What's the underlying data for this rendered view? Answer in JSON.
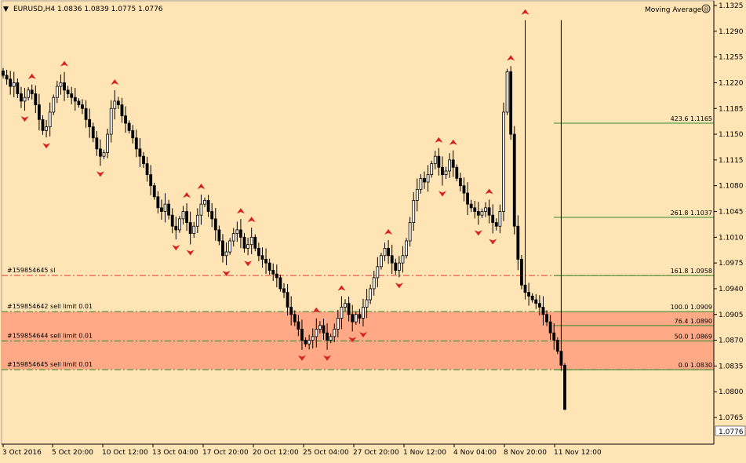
{
  "window": {
    "title": "EURUSD,H4  1.0836 1.0839 1.0775 1.0776"
  },
  "indicator": {
    "label": "Moving Average"
  },
  "price_axis": {
    "labels": [
      "1.1325",
      "1.1290",
      "1.1255",
      "1.1220",
      "1.1185",
      "1.1150",
      "1.1115",
      "1.1080",
      "1.1045",
      "1.1010",
      "1.0975",
      "1.0940",
      "1.0905",
      "1.0870",
      "1.0835",
      "1.0800",
      "1.0765"
    ],
    "current_price": "1.0776"
  },
  "time_axis": {
    "labels": [
      "3 Oct 2016",
      "5 Oct 20:00",
      "10 Oct 12:00",
      "13 Oct 04:00",
      "17 Oct 20:00",
      "20 Oct 12:00",
      "25 Oct 04:00",
      "27 Oct 20:00",
      "1 Nov 12:00",
      "4 Nov 04:00",
      "8 Nov 20:00",
      "11 Nov 12:00"
    ]
  },
  "orders": [
    {
      "label": "#159854645 sl",
      "price": 1.0958,
      "color": "#dc3c3c"
    },
    {
      "label": "#159854642 sell limit 0.01",
      "price": 1.0909,
      "color": "#2e8b2e"
    },
    {
      "label": "#159854644 sell limit 0.01",
      "price": 1.0869,
      "color": "#2e8b2e"
    },
    {
      "label": "#159854645 sell limit 0.01",
      "price": 1.083,
      "color": "#2e8b2e"
    }
  ],
  "fibo_levels": [
    {
      "label": "423.6 1.1165",
      "price": 1.1165
    },
    {
      "label": "261.8 1.1037",
      "price": 1.1037
    },
    {
      "label": "161.8 1.0958",
      "price": 1.0958
    },
    {
      "label": "100.0 1.0909",
      "price": 1.0909
    },
    {
      "label": "76.4 1.0890",
      "price": 1.089
    },
    {
      "label": "50.0 1.0869",
      "price": 1.0869
    },
    {
      "label": "0.0 1.0830",
      "price": 1.083
    }
  ],
  "zone": {
    "price_top": 1.0909,
    "price_bottom": 1.083,
    "color": "#ff9f7f"
  },
  "chart_data": {
    "type": "candlestick",
    "symbol": "EURUSD",
    "timeframe": "H4",
    "ohlc": {
      "open": 1.0836,
      "high": 1.0839,
      "low": 1.0775,
      "close": 1.0776
    },
    "ylim": [
      1.0755,
      1.1325
    ],
    "closes": [
      1.123,
      1.1225,
      1.1215,
      1.122,
      1.1205,
      1.1195,
      1.12,
      1.121,
      1.1205,
      1.119,
      1.117,
      1.1155,
      1.116,
      1.118,
      1.12,
      1.1215,
      1.122,
      1.121,
      1.1205,
      1.12,
      1.1195,
      1.119,
      1.1185,
      1.117,
      1.116,
      1.1145,
      1.113,
      1.112,
      1.1125,
      1.115,
      1.1185,
      1.1195,
      1.119,
      1.1175,
      1.1165,
      1.1155,
      1.1145,
      1.113,
      1.112,
      1.111,
      1.1095,
      1.108,
      1.1065,
      1.105,
      1.1045,
      1.1055,
      1.104,
      1.1025,
      1.102,
      1.1035,
      1.1045,
      1.103,
      1.1015,
      1.1025,
      1.104,
      1.1055,
      1.106,
      1.1045,
      1.1035,
      1.102,
      1.1005,
      1.0985,
      1.099,
      1.1005,
      1.1015,
      1.102,
      1.101,
      1.0995,
      1.1,
      1.101,
      1.0995,
      1.0985,
      1.098,
      1.0975,
      1.0965,
      1.096,
      1.0955,
      1.094,
      1.0935,
      1.0915,
      1.0905,
      1.0895,
      1.0885,
      1.087,
      1.0865,
      1.087,
      1.0875,
      1.0885,
      1.089,
      1.088,
      1.087,
      1.0875,
      1.0885,
      1.09,
      1.0915,
      1.092,
      1.0905,
      1.0895,
      1.0905,
      1.09,
      1.0915,
      1.0925,
      1.094,
      1.0955,
      1.097,
      1.0985,
      1.0995,
      1.0985,
      1.0975,
      1.0965,
      1.0975,
      1.0985,
      1.1005,
      1.103,
      1.106,
      1.1075,
      1.109,
      1.1085,
      1.1095,
      1.111,
      1.112,
      1.1105,
      1.1095,
      1.11,
      1.1115,
      1.1105,
      1.109,
      1.108,
      1.107,
      1.1055,
      1.105,
      1.1045,
      1.104,
      1.1045,
      1.105,
      1.104,
      1.103,
      1.1025,
      1.1045,
      1.118,
      1.1235,
      1.115,
      1.1025,
      1.098,
      1.0945,
      1.0935,
      1.093,
      1.0925,
      1.092,
      1.0915,
      1.0905,
      1.0895,
      1.088,
      1.087,
      1.0855,
      1.0836,
      1.0776
    ]
  }
}
